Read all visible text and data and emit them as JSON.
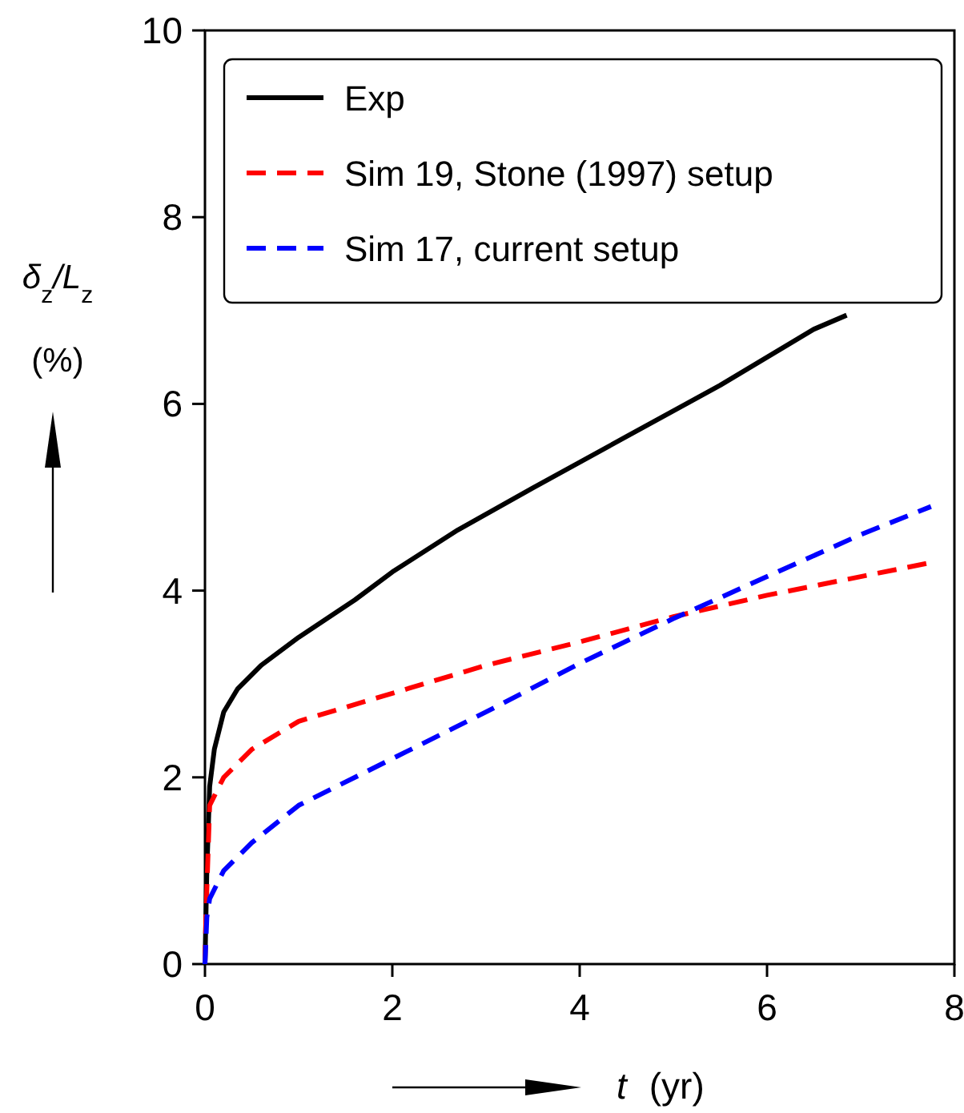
{
  "chart_data": {
    "type": "line",
    "xlabel": "t (yr)",
    "ylabel": "δ$_{z}$/L$_{z}$ (%)",
    "xlim": [
      0,
      8
    ],
    "ylim": [
      0,
      10
    ],
    "xticks": [
      0,
      2,
      4,
      6,
      8
    ],
    "yticks": [
      0,
      2,
      4,
      6,
      8,
      10
    ],
    "legend": "top",
    "grid": false,
    "series": [
      {
        "name": "Exp",
        "color": "#000000",
        "line_style": "solid",
        "x": [
          0,
          0.02,
          0.05,
          0.1,
          0.2,
          0.35,
          0.6,
          1.0,
          1.6,
          2.0,
          2.7,
          3.5,
          4.5,
          5.5,
          6.5,
          6.85
        ],
        "values": [
          0,
          1.0,
          1.9,
          2.3,
          2.7,
          2.95,
          3.2,
          3.5,
          3.9,
          4.2,
          4.65,
          5.1,
          5.65,
          6.2,
          6.8,
          6.95
        ]
      },
      {
        "name": "Sim 19, Stone (1997) setup",
        "color": "#ff0000",
        "line_style": "dashed",
        "x": [
          0,
          0.01,
          0.05,
          0.2,
          0.5,
          1.0,
          2.0,
          3.0,
          4.0,
          5.0,
          6.0,
          7.0,
          7.75
        ],
        "values": [
          0,
          0.5,
          1.7,
          2.0,
          2.3,
          2.6,
          2.9,
          3.2,
          3.45,
          3.72,
          3.95,
          4.15,
          4.3
        ]
      },
      {
        "name": "Sim 17, current setup",
        "color": "#0000ff",
        "line_style": "dashed",
        "x": [
          0,
          0.02,
          0.05,
          0.2,
          0.5,
          1.0,
          2.0,
          3.0,
          4.0,
          5.0,
          6.0,
          7.0,
          7.75
        ],
        "values": [
          0,
          0.5,
          0.7,
          1.0,
          1.3,
          1.7,
          2.2,
          2.7,
          3.22,
          3.7,
          4.15,
          4.6,
          4.9
        ]
      }
    ]
  }
}
